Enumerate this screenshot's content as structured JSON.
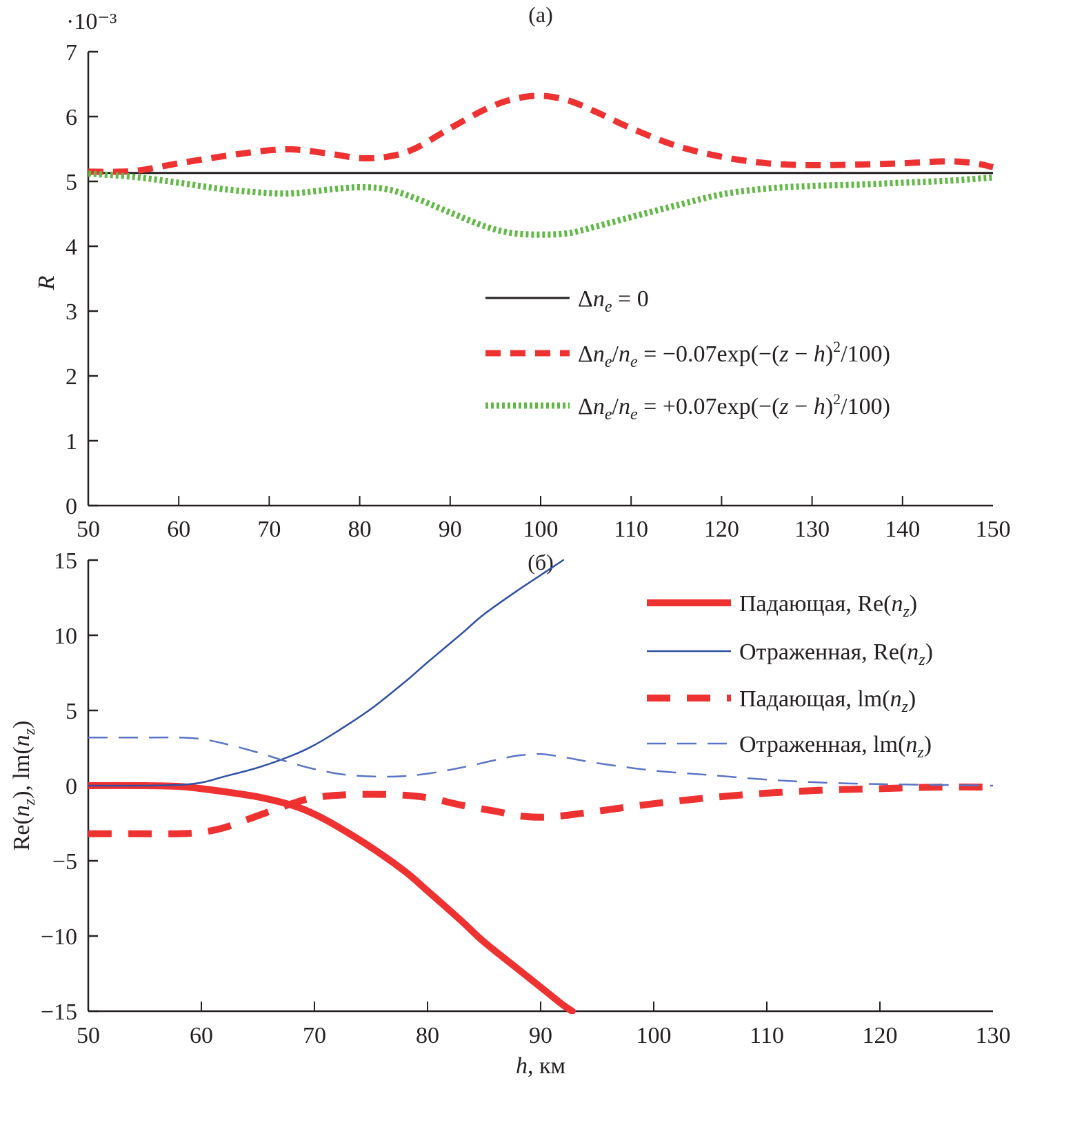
{
  "chart_data": [
    {
      "type": "line",
      "panel_label": "(a)",
      "title": "",
      "xlabel": "",
      "ylabel": "R",
      "y_multiplier": "·10⁻³",
      "xlim": [
        50,
        150
      ],
      "ylim": [
        0,
        7
      ],
      "xticks": [
        50,
        60,
        70,
        80,
        90,
        100,
        110,
        120,
        130,
        140,
        150
      ],
      "yticks": [
        0,
        1,
        2,
        3,
        4,
        5,
        6,
        7
      ],
      "grid": false,
      "legend_position": "center-right",
      "series": [
        {
          "name": "Δn_e = 0",
          "legend_label": {
            "prefix": "Δ",
            "var": "n",
            "sub": "e",
            "rest": " = 0"
          },
          "style": "solid",
          "color": "#231f20",
          "x": [
            50,
            150
          ],
          "y": [
            5.13,
            5.13
          ]
        },
        {
          "name": "Δn_e/n_e = −0.07exp(−(z − h)^2/100)",
          "legend_label": {
            "text": "Δn_e/n_e = −0.07exp(−(z − h)²/100)"
          },
          "style": "dashed",
          "color": "#ee3131",
          "x": [
            50,
            55,
            60,
            65,
            70,
            73,
            77,
            80,
            83,
            86,
            90,
            94,
            97,
            100,
            103,
            106,
            110,
            115,
            120,
            125,
            130,
            135,
            140,
            145,
            148,
            150
          ],
          "y": [
            5.15,
            5.16,
            5.28,
            5.39,
            5.48,
            5.49,
            5.42,
            5.36,
            5.38,
            5.5,
            5.82,
            6.12,
            6.27,
            6.32,
            6.25,
            6.08,
            5.82,
            5.55,
            5.38,
            5.28,
            5.25,
            5.26,
            5.28,
            5.31,
            5.28,
            5.22
          ]
        },
        {
          "name": "Δn_e/n_e = +0.07exp(−(z − h)^2/100)",
          "legend_label": {
            "text": "Δn_e/n_e = +0.07exp(−(z − h)²/100)"
          },
          "style": "dotted",
          "color": "#62b846",
          "x": [
            50,
            55,
            60,
            65,
            70,
            73,
            77,
            80,
            83,
            86,
            90,
            94,
            97,
            100,
            103,
            106,
            110,
            115,
            120,
            125,
            130,
            135,
            140,
            145,
            150
          ],
          "y": [
            5.12,
            5.07,
            4.98,
            4.88,
            4.82,
            4.82,
            4.88,
            4.91,
            4.88,
            4.75,
            4.52,
            4.3,
            4.2,
            4.18,
            4.2,
            4.3,
            4.45,
            4.63,
            4.8,
            4.89,
            4.93,
            4.95,
            4.98,
            5.01,
            5.06
          ]
        }
      ]
    },
    {
      "type": "line",
      "panel_label": "(б)",
      "title": "",
      "xlabel": "h, км",
      "ylabel": "Re(n_z), lm(n_z)",
      "xlim": [
        50,
        130
      ],
      "ylim": [
        -15,
        15
      ],
      "xticks": [
        50,
        60,
        70,
        80,
        90,
        100,
        110,
        120,
        130
      ],
      "yticks": [
        -15,
        -10,
        -5,
        0,
        5,
        10,
        15
      ],
      "grid": false,
      "legend_position": "top-right",
      "series": [
        {
          "name": "Падающая, Re(n_z)",
          "legend_label": {
            "prefix": "Падающая, Re(",
            "var": "n",
            "sub": "z",
            "rest": ")"
          },
          "style": "solid-thick",
          "color": "#ee3131",
          "x": [
            50,
            55,
            58,
            60,
            62,
            65,
            68,
            70,
            72,
            75,
            78,
            80,
            83,
            85,
            88,
            90,
            92,
            92.8
          ],
          "y": [
            0,
            0,
            -0.05,
            -0.2,
            -0.4,
            -0.75,
            -1.3,
            -1.9,
            -2.7,
            -4.1,
            -5.7,
            -7.0,
            -9.0,
            -10.4,
            -12.2,
            -13.4,
            -14.6,
            -15
          ]
        },
        {
          "name": "Отраженная, Re(n_z)",
          "legend_label": {
            "prefix": "Отраженная, Re(",
            "var": "n",
            "sub": "z",
            "rest": ")"
          },
          "style": "solid-thin",
          "color": "#2e4fa3",
          "x": [
            50,
            55,
            58,
            60,
            62,
            65,
            68,
            70,
            72,
            75,
            78,
            80,
            83,
            85,
            88,
            90,
            92
          ],
          "y": [
            0,
            0,
            0.05,
            0.2,
            0.6,
            1.2,
            2.0,
            2.7,
            3.6,
            5.1,
            6.9,
            8.2,
            10.1,
            11.4,
            13.0,
            14.0,
            15
          ]
        },
        {
          "name": "Падающая, lm(n_z)",
          "legend_label": {
            "prefix": "Падающая, lm(",
            "var": "n",
            "sub": "z",
            "rest": ")"
          },
          "style": "dashed-thick",
          "color": "#ee3131",
          "x": [
            50,
            55,
            58,
            60,
            62,
            65,
            68,
            70,
            73,
            77,
            80,
            83,
            86,
            88,
            90,
            92,
            95,
            100,
            105,
            110,
            115,
            120,
            125,
            130
          ],
          "y": [
            -3.2,
            -3.2,
            -3.2,
            -3.1,
            -2.8,
            -2.0,
            -1.2,
            -0.8,
            -0.6,
            -0.6,
            -0.8,
            -1.3,
            -1.7,
            -2.0,
            -2.1,
            -2.0,
            -1.7,
            -1.2,
            -0.8,
            -0.5,
            -0.3,
            -0.2,
            -0.1,
            -0.1
          ]
        },
        {
          "name": "Отраженная, lm(n_z)",
          "legend_label": {
            "prefix": "Отраженная, lm(",
            "var": "n",
            "sub": "z",
            "rest": ")"
          },
          "style": "dashed-thin",
          "color": "#5a74c4",
          "x": [
            50,
            55,
            58,
            60,
            62,
            65,
            68,
            70,
            73,
            77,
            80,
            83,
            86,
            88,
            90,
            92,
            95,
            100,
            105,
            110,
            115,
            120,
            125,
            130
          ],
          "y": [
            3.2,
            3.2,
            3.2,
            3.1,
            2.8,
            2.2,
            1.5,
            1.1,
            0.7,
            0.6,
            0.8,
            1.2,
            1.7,
            2.0,
            2.1,
            1.9,
            1.5,
            1.0,
            0.7,
            0.4,
            0.2,
            0.1,
            0.05,
            0
          ]
        }
      ]
    }
  ]
}
